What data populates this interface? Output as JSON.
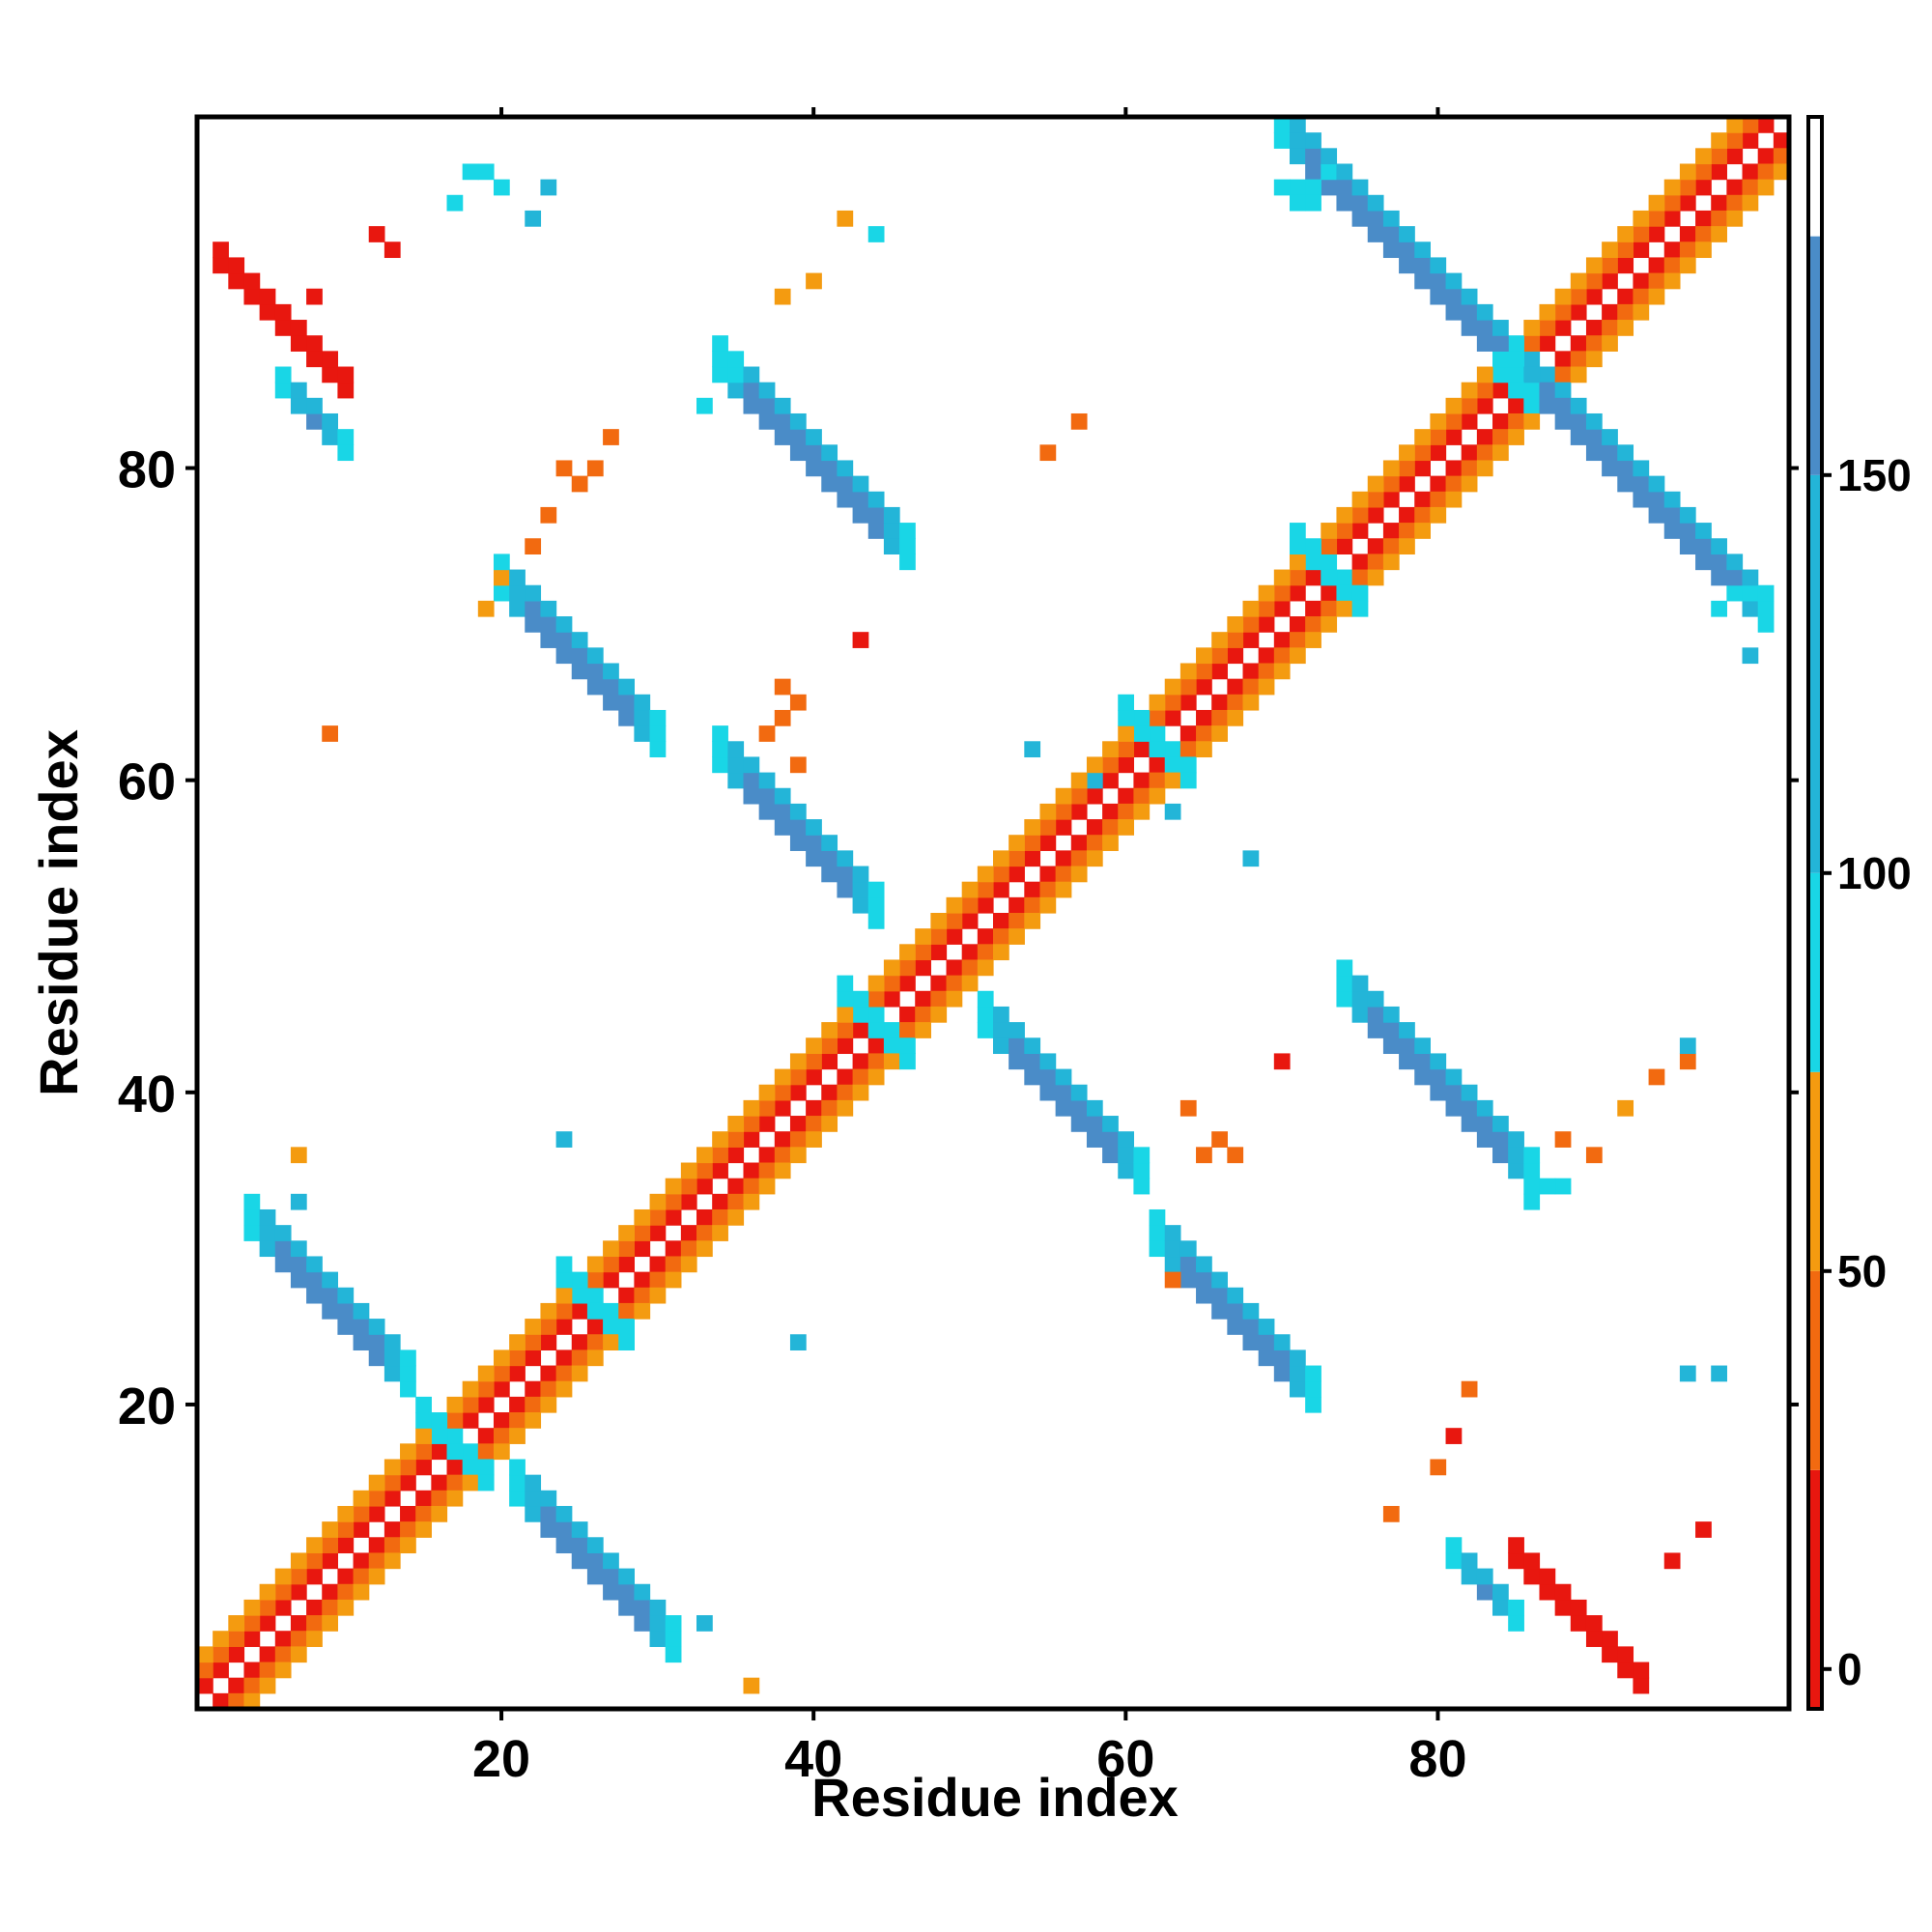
{
  "chart_data": {
    "type": "heatmap",
    "title": "",
    "xlabel": "Residue index",
    "ylabel": "Residue index",
    "xlim": [
      1,
      102
    ],
    "ylim": [
      1,
      102
    ],
    "x_ticks": [
      20,
      40,
      60,
      80
    ],
    "y_ticks": [
      20,
      40,
      60,
      80
    ],
    "colorbar": {
      "ticks": [
        0,
        50,
        100,
        150
      ],
      "range": [
        -5,
        195
      ],
      "bands": [
        {
          "from": -5,
          "to": 25,
          "color": "#e8170f"
        },
        {
          "from": 25,
          "to": 50,
          "color": "#f26a10"
        },
        {
          "from": 50,
          "to": 75,
          "color": "#f49b10"
        },
        {
          "from": 75,
          "to": 100,
          "color": "#19d6e6"
        },
        {
          "from": 100,
          "to": 150,
          "color": "#23b5d8"
        },
        {
          "from": 150,
          "to": 180,
          "color": "#4a8cc8"
        },
        {
          "from": 180,
          "to": 195,
          "color": "#ffffff"
        }
      ]
    },
    "colors": {
      "red": "#e8170f",
      "red_orange": "#f26a10",
      "orange": "#f49b10",
      "cyan": "#19d6e6",
      "light_blue": "#23b5d8",
      "steel_blue": "#4a8cc8"
    },
    "regions": [
      {
        "kind": "diag_band",
        "from": 1,
        "to": 102,
        "offset": 1,
        "bands": 2,
        "value": 10,
        "note": "main diagonal i,i+-1"
      },
      {
        "kind": "diag_band",
        "from": 1,
        "to": 102,
        "offset": 2,
        "bands": 1,
        "value": 35
      },
      {
        "kind": "diag_band",
        "from": 1,
        "to": 102,
        "offset": 3,
        "bands": 1,
        "value": 55
      },
      {
        "kind": "anti",
        "cx": 9,
        "cy": 26,
        "len": 10,
        "width": 3,
        "value": 160
      },
      {
        "kind": "anti",
        "cx": 26,
        "cy": 9,
        "len": 10,
        "width": 3,
        "value": 160
      },
      {
        "kind": "anti",
        "cx": 25,
        "cy": 67,
        "len": 10,
        "width": 3,
        "value": 160
      },
      {
        "kind": "anti",
        "cx": 67,
        "cy": 25,
        "len": 10,
        "width": 3,
        "value": 160
      },
      {
        "kind": "anti",
        "cx": 39,
        "cy": 56,
        "len": 11,
        "width": 3,
        "value": 160
      },
      {
        "kind": "anti",
        "cx": 56,
        "cy": 39,
        "len": 11,
        "width": 3,
        "value": 160
      },
      {
        "kind": "anti",
        "cx": 40,
        "cy": 80,
        "len": 12,
        "width": 3,
        "value": 160
      },
      {
        "kind": "anti",
        "cx": 80,
        "cy": 40,
        "len": 12,
        "width": 3,
        "value": 160
      },
      {
        "kind": "anti",
        "cx": 78,
        "cy": 93,
        "len": 16,
        "width": 3,
        "value": 160
      },
      {
        "kind": "anti",
        "cx": 93,
        "cy": 78,
        "len": 16,
        "width": 3,
        "value": 160
      },
      {
        "kind": "anti",
        "cx": 26,
        "cy": 26,
        "len": 4,
        "width": 2,
        "value": 90
      },
      {
        "kind": "anti",
        "cx": 44,
        "cy": 44,
        "len": 4,
        "width": 2,
        "value": 90
      },
      {
        "kind": "anti",
        "cx": 62,
        "cy": 62,
        "len": 4,
        "width": 2,
        "value": 90
      },
      {
        "kind": "anti",
        "cx": 73,
        "cy": 73,
        "len": 4,
        "width": 2,
        "value": 90
      },
      {
        "kind": "anti",
        "cx": 17,
        "cy": 17,
        "len": 4,
        "width": 2,
        "value": 90
      },
      {
        "kind": "anti",
        "cx": 85,
        "cy": 85,
        "len": 3,
        "width": 2,
        "value": 90
      },
      {
        "kind": "anti",
        "cx": 6,
        "cy": 89,
        "len": 8,
        "width": 2,
        "value": 15
      },
      {
        "kind": "anti",
        "cx": 89,
        "cy": 6,
        "len": 8,
        "width": 2,
        "value": 15
      },
      {
        "kind": "anti",
        "cx": 8,
        "cy": 83,
        "len": 5,
        "width": 2,
        "value": 160
      },
      {
        "kind": "anti",
        "cx": 83,
        "cy": 8,
        "len": 5,
        "width": 2,
        "value": 160
      },
      {
        "kind": "cells",
        "value": 40,
        "pts": [
          [
            39,
            61
          ],
          [
            37,
            63
          ],
          [
            38,
            64
          ],
          [
            39,
            65
          ],
          [
            38,
            66
          ],
          [
            55,
            81
          ],
          [
            57,
            83
          ],
          [
            82,
            21
          ],
          [
            81,
            18
          ],
          [
            80,
            16
          ],
          [
            77,
            13
          ],
          [
            65,
            36
          ],
          [
            66,
            37
          ],
          [
            67,
            36
          ],
          [
            64,
            39
          ],
          [
            63,
            28
          ],
          [
            9,
            63
          ],
          [
            24,
            80
          ],
          [
            25,
            79
          ],
          [
            26,
            80
          ],
          [
            23,
            77
          ],
          [
            22,
            75
          ],
          [
            27,
            82
          ],
          [
            94,
            41
          ],
          [
            96,
            42
          ],
          [
            88,
            37
          ],
          [
            90,
            36
          ]
        ]
      },
      {
        "kind": "cells",
        "value": 10,
        "pts": [
          [
            43,
            69
          ],
          [
            70,
            42
          ],
          [
            8,
            91
          ],
          [
            13,
            94
          ],
          [
            12,
            95
          ],
          [
            81,
            18
          ],
          [
            97,
            12
          ],
          [
            95,
            10
          ]
        ]
      },
      {
        "kind": "cells",
        "value": 55,
        "pts": [
          [
            36,
            2
          ],
          [
            7,
            36
          ],
          [
            92,
            39
          ],
          [
            20,
            73
          ],
          [
            19,
            71
          ],
          [
            38,
            91
          ],
          [
            40,
            92
          ],
          [
            42,
            96
          ]
        ]
      },
      {
        "kind": "cells",
        "value": 120,
        "pts": [
          [
            33,
            6
          ],
          [
            39,
            24
          ],
          [
            24,
            37
          ],
          [
            54,
            62
          ],
          [
            58,
            60
          ],
          [
            63,
            58
          ],
          [
            68,
            55
          ],
          [
            23,
            98
          ],
          [
            22,
            96
          ],
          [
            96,
            22
          ],
          [
            98,
            22
          ],
          [
            96,
            43
          ],
          [
            100,
            68
          ],
          [
            7,
            33
          ]
        ]
      },
      {
        "kind": "cells",
        "value": 90,
        "pts": [
          [
            18,
            99
          ],
          [
            19,
            99
          ],
          [
            20,
            98
          ],
          [
            17,
            97
          ],
          [
            44,
            95
          ],
          [
            35,
            86
          ],
          [
            35,
            87
          ],
          [
            33,
            84
          ],
          [
            72,
            98
          ],
          [
            72,
            97
          ],
          [
            73,
            99
          ],
          [
            71,
            98
          ],
          [
            99,
            72
          ],
          [
            98,
            71
          ],
          [
            100,
            72
          ],
          [
            88,
            34
          ],
          [
            87,
            34
          ],
          [
            86,
            33
          ],
          [
            70,
            98
          ],
          [
            71,
            97
          ]
        ]
      }
    ]
  }
}
